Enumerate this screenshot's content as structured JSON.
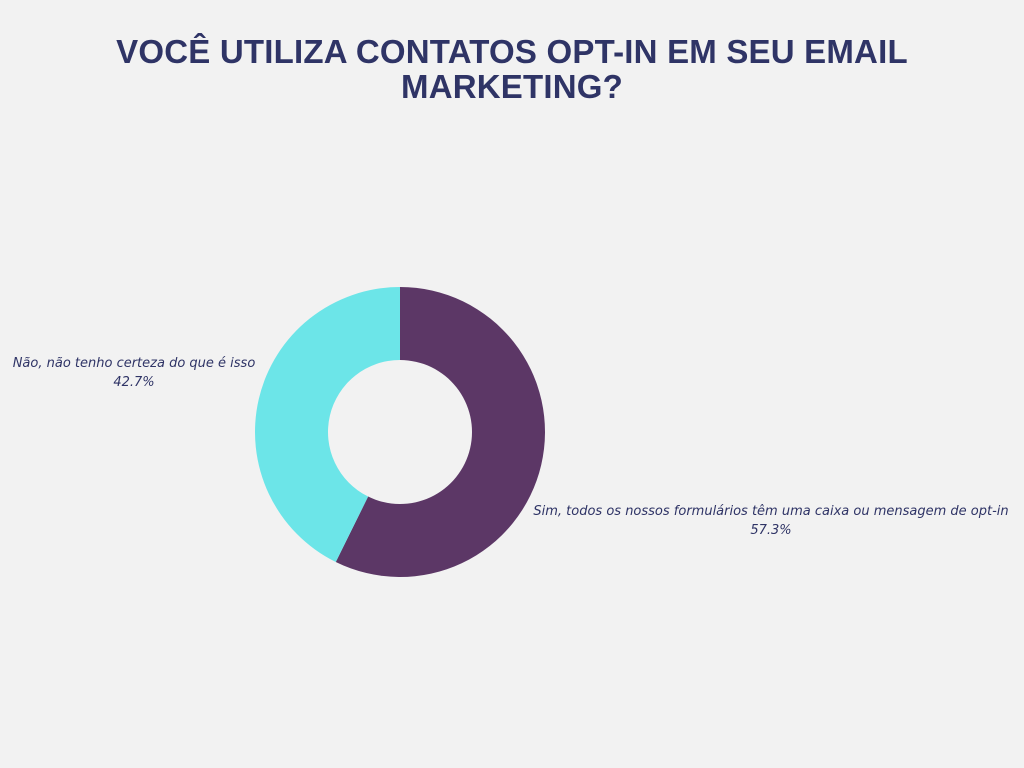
{
  "title": "VOCÊ UTILIZA CONTATOS OPT-IN EM SEU EMAIL MARKETING?",
  "chart_data": {
    "type": "pie",
    "donut": true,
    "title": "VOCÊ UTILIZA CONTATOS OPT-IN EM SEU EMAIL MARKETING?",
    "slices": [
      {
        "label": "Sim, todos os nossos formulários têm uma caixa ou mensagem de opt-in",
        "value": 57.3,
        "value_label": "57.3%",
        "color": "#5c3766"
      },
      {
        "label": "Não, não tenho certeza do que é isso",
        "value": 42.7,
        "value_label": "42.7%",
        "color": "#6ce5e8"
      }
    ],
    "legend": "none"
  }
}
